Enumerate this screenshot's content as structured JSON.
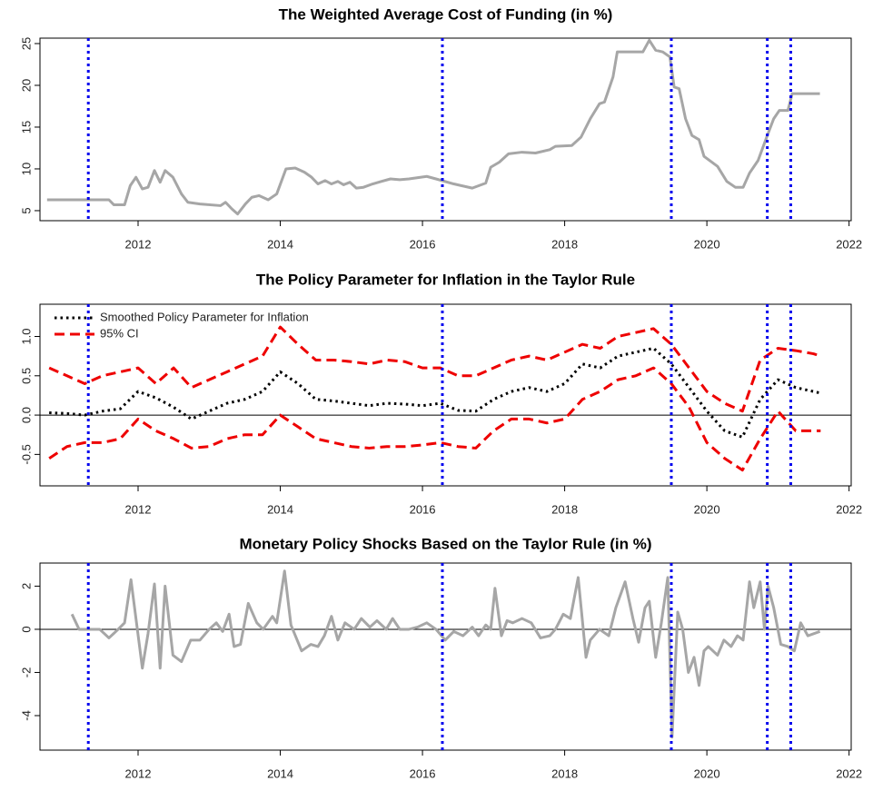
{
  "chart_data": [
    {
      "type": "line",
      "title": "The Weighted Average Cost of Funding (in %)",
      "xlim": [
        2010.62,
        2022.03
      ],
      "xticks": [
        2012,
        2014,
        2016,
        2018,
        2020,
        2022
      ],
      "ylim": [
        3.8,
        25.65
      ],
      "yticks": [
        5,
        10,
        15,
        20,
        25
      ],
      "vlines": [
        2011.3,
        2016.28,
        2019.5,
        2020.85,
        2021.18
      ],
      "vline_color": "#0000ee",
      "x": [
        2010.72,
        2011.59,
        2011.66,
        2011.81,
        2011.89,
        2011.97,
        2012.06,
        2012.14,
        2012.23,
        2012.31,
        2012.38,
        2012.49,
        2012.61,
        2012.7,
        2012.87,
        2013.16,
        2013.23,
        2013.32,
        2013.4,
        2013.51,
        2013.6,
        2013.7,
        2013.83,
        2013.95,
        2014.08,
        2014.21,
        2014.34,
        2014.44,
        2014.53,
        2014.63,
        2014.72,
        2014.81,
        2014.89,
        2014.98,
        2015.07,
        2015.17,
        2015.3,
        2015.42,
        2015.55,
        2015.68,
        2015.81,
        2016.06,
        2016.19,
        2016.44,
        2016.7,
        2016.89,
        2016.96,
        2017.08,
        2017.21,
        2017.4,
        2017.59,
        2017.79,
        2017.87,
        2018.1,
        2018.23,
        2018.36,
        2018.49,
        2018.56,
        2018.68,
        2018.74,
        2018.87,
        2019.1,
        2019.19,
        2019.28,
        2019.38,
        2019.48,
        2019.54,
        2019.61,
        2019.7,
        2019.79,
        2019.89,
        2019.96,
        2020.15,
        2020.28,
        2020.4,
        2020.51,
        2020.6,
        2020.72,
        2020.85,
        2020.94,
        2021.02,
        2021.14,
        2021.2,
        2021.59
      ],
      "series": [
        {
          "color": "#a6a6a6",
          "style": "solid",
          "values": [
            6.3,
            6.3,
            5.7,
            5.7,
            8,
            9,
            7.6,
            7.8,
            9.8,
            8.4,
            9.8,
            9,
            7,
            6,
            5.8,
            5.6,
            6,
            5.2,
            4.6,
            5.8,
            6.6,
            6.8,
            6.3,
            7,
            10,
            10.1,
            9.6,
            9,
            8.2,
            8.6,
            8.2,
            8.5,
            8.1,
            8.4,
            7.7,
            7.8,
            8.2,
            8.5,
            8.8,
            8.7,
            8.8,
            9.1,
            8.8,
            8.2,
            7.7,
            8.3,
            10.2,
            10.8,
            11.8,
            12,
            11.9,
            12.3,
            12.7,
            12.8,
            13.8,
            16,
            17.8,
            18,
            21,
            24,
            24,
            24,
            25.4,
            24.2,
            24,
            23.4,
            19.8,
            19.6,
            16,
            14,
            13.5,
            11.5,
            10.3,
            8.5,
            7.8,
            7.8,
            9.5,
            11,
            14,
            16,
            17,
            17,
            19,
            19
          ]
        }
      ]
    },
    {
      "type": "line",
      "title": "The Policy Parameter for Inflation in the Taylor Rule",
      "xlim": [
        2010.62,
        2022.03
      ],
      "xticks": [
        2012,
        2014,
        2016,
        2018,
        2020,
        2022
      ],
      "ylim": [
        -0.9,
        1.41
      ],
      "yticks": [
        -0.5,
        {
          "value": 0,
          "label": "0.0"
        },
        0.5,
        {
          "value": 1,
          "label": "1.0"
        }
      ],
      "hline": 0,
      "vlines": [
        2011.3,
        2016.28,
        2019.5,
        2020.85,
        2021.18
      ],
      "vline_color": "#0000ee",
      "legend": "topleft",
      "x": [
        2010.75,
        2011,
        2011.25,
        2011.5,
        2011.75,
        2012,
        2012.25,
        2012.5,
        2012.75,
        2013,
        2013.25,
        2013.5,
        2013.75,
        2014,
        2014.25,
        2014.5,
        2014.75,
        2015,
        2015.25,
        2015.5,
        2015.75,
        2016,
        2016.25,
        2016.5,
        2016.75,
        2017,
        2017.25,
        2017.5,
        2017.75,
        2018,
        2018.25,
        2018.5,
        2018.75,
        2019,
        2019.25,
        2019.5,
        2019.75,
        2020,
        2020.25,
        2020.5,
        2020.75,
        2021,
        2021.25,
        2021.5,
        2021.6
      ],
      "series": [
        {
          "name": "Smoothed Policy Parameter for Inflation",
          "color": "#000000",
          "style": "dotted",
          "values": [
            0.03,
            0.02,
            0,
            0.05,
            0.08,
            0.3,
            0.22,
            0.1,
            -0.05,
            0.05,
            0.15,
            0.2,
            0.3,
            0.55,
            0.4,
            0.2,
            0.18,
            0.15,
            0.12,
            0.15,
            0.14,
            0.12,
            0.15,
            0.06,
            0.05,
            0.2,
            0.3,
            0.35,
            0.3,
            0.4,
            0.65,
            0.6,
            0.75,
            0.8,
            0.85,
            0.65,
            0.35,
            0.05,
            -0.2,
            -0.28,
            0.2,
            0.45,
            0.35,
            0.3,
            0.28
          ]
        },
        {
          "name": "95% CI",
          "color": "#ee0000",
          "style": "dashed",
          "values": [
            0.6,
            0.5,
            0.4,
            0.5,
            0.55,
            0.6,
            0.4,
            0.6,
            0.35,
            0.45,
            0.55,
            0.65,
            0.75,
            1.12,
            0.9,
            0.7,
            0.7,
            0.68,
            0.65,
            0.7,
            0.68,
            0.6,
            0.6,
            0.5,
            0.5,
            0.6,
            0.7,
            0.75,
            0.7,
            0.8,
            0.9,
            0.85,
            1,
            1.05,
            1.1,
            0.9,
            0.6,
            0.3,
            0.15,
            0.05,
            0.7,
            0.85,
            0.82,
            0.78,
            0.75
          ],
          "lower": [
            -0.55,
            -0.4,
            -0.35,
            -0.35,
            -0.3,
            -0.05,
            -0.2,
            -0.3,
            -0.42,
            -0.4,
            -0.3,
            -0.25,
            -0.25,
            0,
            -0.15,
            -0.3,
            -0.35,
            -0.4,
            -0.42,
            -0.4,
            -0.4,
            -0.38,
            -0.35,
            -0.4,
            -0.42,
            -0.2,
            -0.05,
            -0.05,
            -0.1,
            -0.05,
            0.2,
            0.3,
            0.45,
            0.5,
            0.6,
            0.4,
            0.1,
            -0.35,
            -0.55,
            -0.7,
            -0.3,
            0.05,
            -0.2,
            -0.2,
            -0.2
          ]
        }
      ]
    },
    {
      "type": "line",
      "title": "Monetary Policy Shocks Based on the Taylor Rule (in %)",
      "xlim": [
        2010.62,
        2022.03
      ],
      "xticks": [
        2012,
        2014,
        2016,
        2018,
        2020,
        2022
      ],
      "ylim": [
        -5.6,
        3.07
      ],
      "yticks": [
        -4,
        -2,
        0,
        2
      ],
      "hline": 0,
      "vlines": [
        2011.3,
        2016.28,
        2019.5,
        2020.85,
        2021.18
      ],
      "vline_color": "#0000ee",
      "x": [
        2011.07,
        2011.17,
        2011.27,
        2011.46,
        2011.59,
        2011.72,
        2011.81,
        2011.9,
        2011.97,
        2012.06,
        2012.14,
        2012.23,
        2012.31,
        2012.38,
        2012.49,
        2012.61,
        2012.74,
        2012.87,
        2013,
        2013.1,
        2013.19,
        2013.28,
        2013.35,
        2013.44,
        2013.55,
        2013.67,
        2013.76,
        2013.89,
        2013.95,
        2014.06,
        2014.15,
        2014.3,
        2014.43,
        2014.53,
        2014.62,
        2014.72,
        2014.81,
        2014.91,
        2015.04,
        2015.14,
        2015.26,
        2015.36,
        2015.49,
        2015.58,
        2015.68,
        2015.81,
        2015.93,
        2016.06,
        2016.19,
        2016.32,
        2016.44,
        2016.57,
        2016.7,
        2016.79,
        2016.89,
        2016.96,
        2017.02,
        2017.11,
        2017.19,
        2017.27,
        2017.4,
        2017.53,
        2017.66,
        2017.79,
        2017.87,
        2017.98,
        2018.08,
        2018.19,
        2018.3,
        2018.36,
        2018.49,
        2018.62,
        2018.72,
        2018.85,
        2018.96,
        2019.04,
        2019.13,
        2019.19,
        2019.28,
        2019.36,
        2019.45,
        2019.51,
        2019.59,
        2019.66,
        2019.74,
        2019.82,
        2019.89,
        2019.96,
        2020.02,
        2020.15,
        2020.24,
        2020.34,
        2020.43,
        2020.51,
        2020.6,
        2020.66,
        2020.75,
        2020.81,
        2020.86,
        2020.94,
        2021.04,
        2021.14,
        2021.23,
        2021.32,
        2021.42,
        2021.59
      ],
      "series": [
        {
          "color": "#a6a6a6",
          "style": "solid",
          "values": [
            0.7,
            0,
            0,
            0,
            -0.4,
            0,
            0.3,
            2.3,
            0.5,
            -1.8,
            -0.2,
            2.1,
            -1.8,
            2,
            -1.2,
            -1.5,
            -0.5,
            -0.5,
            0,
            0.3,
            -0.1,
            0.7,
            -0.8,
            -0.7,
            1.2,
            0.3,
            0,
            0.6,
            0.3,
            2.7,
            0.2,
            -1,
            -0.7,
            -0.8,
            -0.3,
            0.6,
            -0.5,
            0.3,
            0,
            0.5,
            0.1,
            0.4,
            0,
            0.5,
            0,
            0,
            0.1,
            0.3,
            0,
            -0.5,
            -0.1,
            -0.3,
            0.1,
            -0.3,
            0.2,
            0,
            1.9,
            -0.3,
            0.4,
            0.3,
            0.5,
            0.3,
            -0.4,
            -0.3,
            0,
            0.7,
            0.5,
            2.4,
            -1.3,
            -0.5,
            0,
            -0.3,
            1,
            2.2,
            0.5,
            -0.6,
            1,
            1.3,
            -1.3,
            0.3,
            2.4,
            -5,
            0.8,
            0,
            -2,
            -1.3,
            -2.6,
            -1,
            -0.8,
            -1.2,
            -0.5,
            -0.8,
            -0.3,
            -0.5,
            2.2,
            1,
            2.2,
            0,
            2,
            1,
            -0.7,
            -0.8,
            -1,
            0.3,
            -0.3,
            -0.1
          ]
        }
      ]
    }
  ]
}
